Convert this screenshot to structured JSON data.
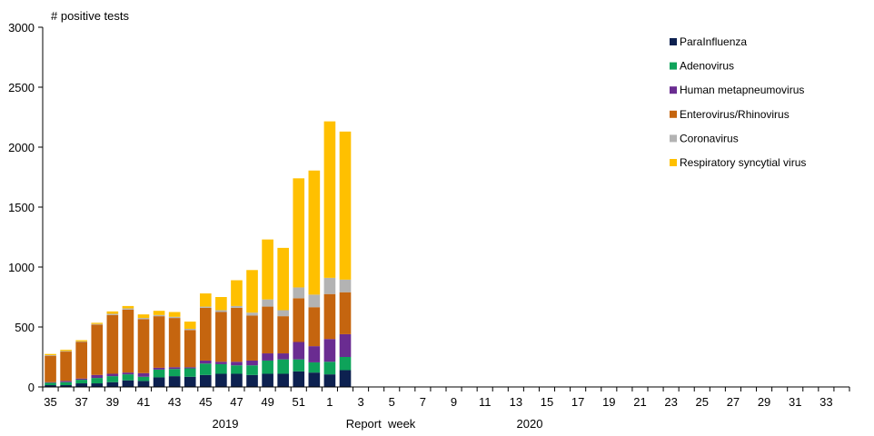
{
  "chart_data": {
    "type": "bar",
    "stacked": true,
    "ylabel": "# positive tests",
    "xlabel": "Report  week",
    "ylim": [
      0,
      3000
    ],
    "yticks": [
      "0",
      "500",
      "1000",
      "1500",
      "2000",
      "2500",
      "3000"
    ],
    "year_labels": [
      "2019",
      "2020"
    ],
    "legend_position": "top-right",
    "grid": false,
    "weeks": [
      "35",
      "36",
      "37",
      "38",
      "39",
      "40",
      "41",
      "42",
      "43",
      "44",
      "45",
      "46",
      "47",
      "48",
      "49",
      "50",
      "51",
      "52",
      "1",
      "2",
      "3",
      "4",
      "5",
      "6",
      "7",
      "8",
      "9",
      "10",
      "11",
      "12",
      "13",
      "14",
      "15",
      "16",
      "17",
      "18",
      "19",
      "20",
      "21",
      "22",
      "23",
      "24",
      "25",
      "26",
      "27",
      "28",
      "29",
      "30",
      "31",
      "32",
      "33",
      "34"
    ],
    "tick_labels": [
      "35",
      "37",
      "39",
      "41",
      "43",
      "45",
      "47",
      "49",
      "51",
      "1",
      "3",
      "5",
      "7",
      "9",
      "11",
      "13",
      "15",
      "17",
      "19",
      "21",
      "23",
      "25",
      "27",
      "29",
      "31",
      "33"
    ],
    "series": [
      {
        "name": "ParaInfluenza",
        "color": "#0d2150",
        "values": [
          15,
          15,
          30,
          30,
          40,
          55,
          50,
          80,
          90,
          85,
          100,
          110,
          110,
          100,
          110,
          110,
          130,
          120,
          105,
          140
        ]
      },
      {
        "name": "Adenovirus",
        "color": "#0ea35a",
        "values": [
          20,
          25,
          30,
          45,
          50,
          50,
          35,
          65,
          60,
          70,
          95,
          80,
          70,
          80,
          110,
          120,
          100,
          85,
          105,
          110
        ]
      },
      {
        "name": "Human metapneumovirus",
        "color": "#6a2c91",
        "values": [
          5,
          10,
          10,
          25,
          20,
          15,
          30,
          15,
          15,
          10,
          25,
          20,
          30,
          40,
          60,
          50,
          145,
          135,
          190,
          190
        ]
      },
      {
        "name": "Enterovirus/Rhinovirus",
        "color": "#c5650f",
        "values": [
          220,
          245,
          305,
          420,
          490,
          525,
          450,
          430,
          410,
          310,
          440,
          415,
          450,
          375,
          390,
          310,
          365,
          325,
          375,
          350
        ]
      },
      {
        "name": "Coronavirus",
        "color": "#b3b3b3",
        "values": [
          5,
          5,
          5,
          5,
          10,
          10,
          10,
          10,
          10,
          10,
          10,
          15,
          15,
          25,
          60,
          50,
          90,
          105,
          135,
          105
        ]
      },
      {
        "name": "Respiratory syncytial virus",
        "color": "#ffc000",
        "values": [
          10,
          10,
          10,
          10,
          20,
          20,
          30,
          35,
          40,
          60,
          110,
          110,
          215,
          355,
          500,
          520,
          910,
          1035,
          1305,
          1235
        ]
      }
    ]
  }
}
